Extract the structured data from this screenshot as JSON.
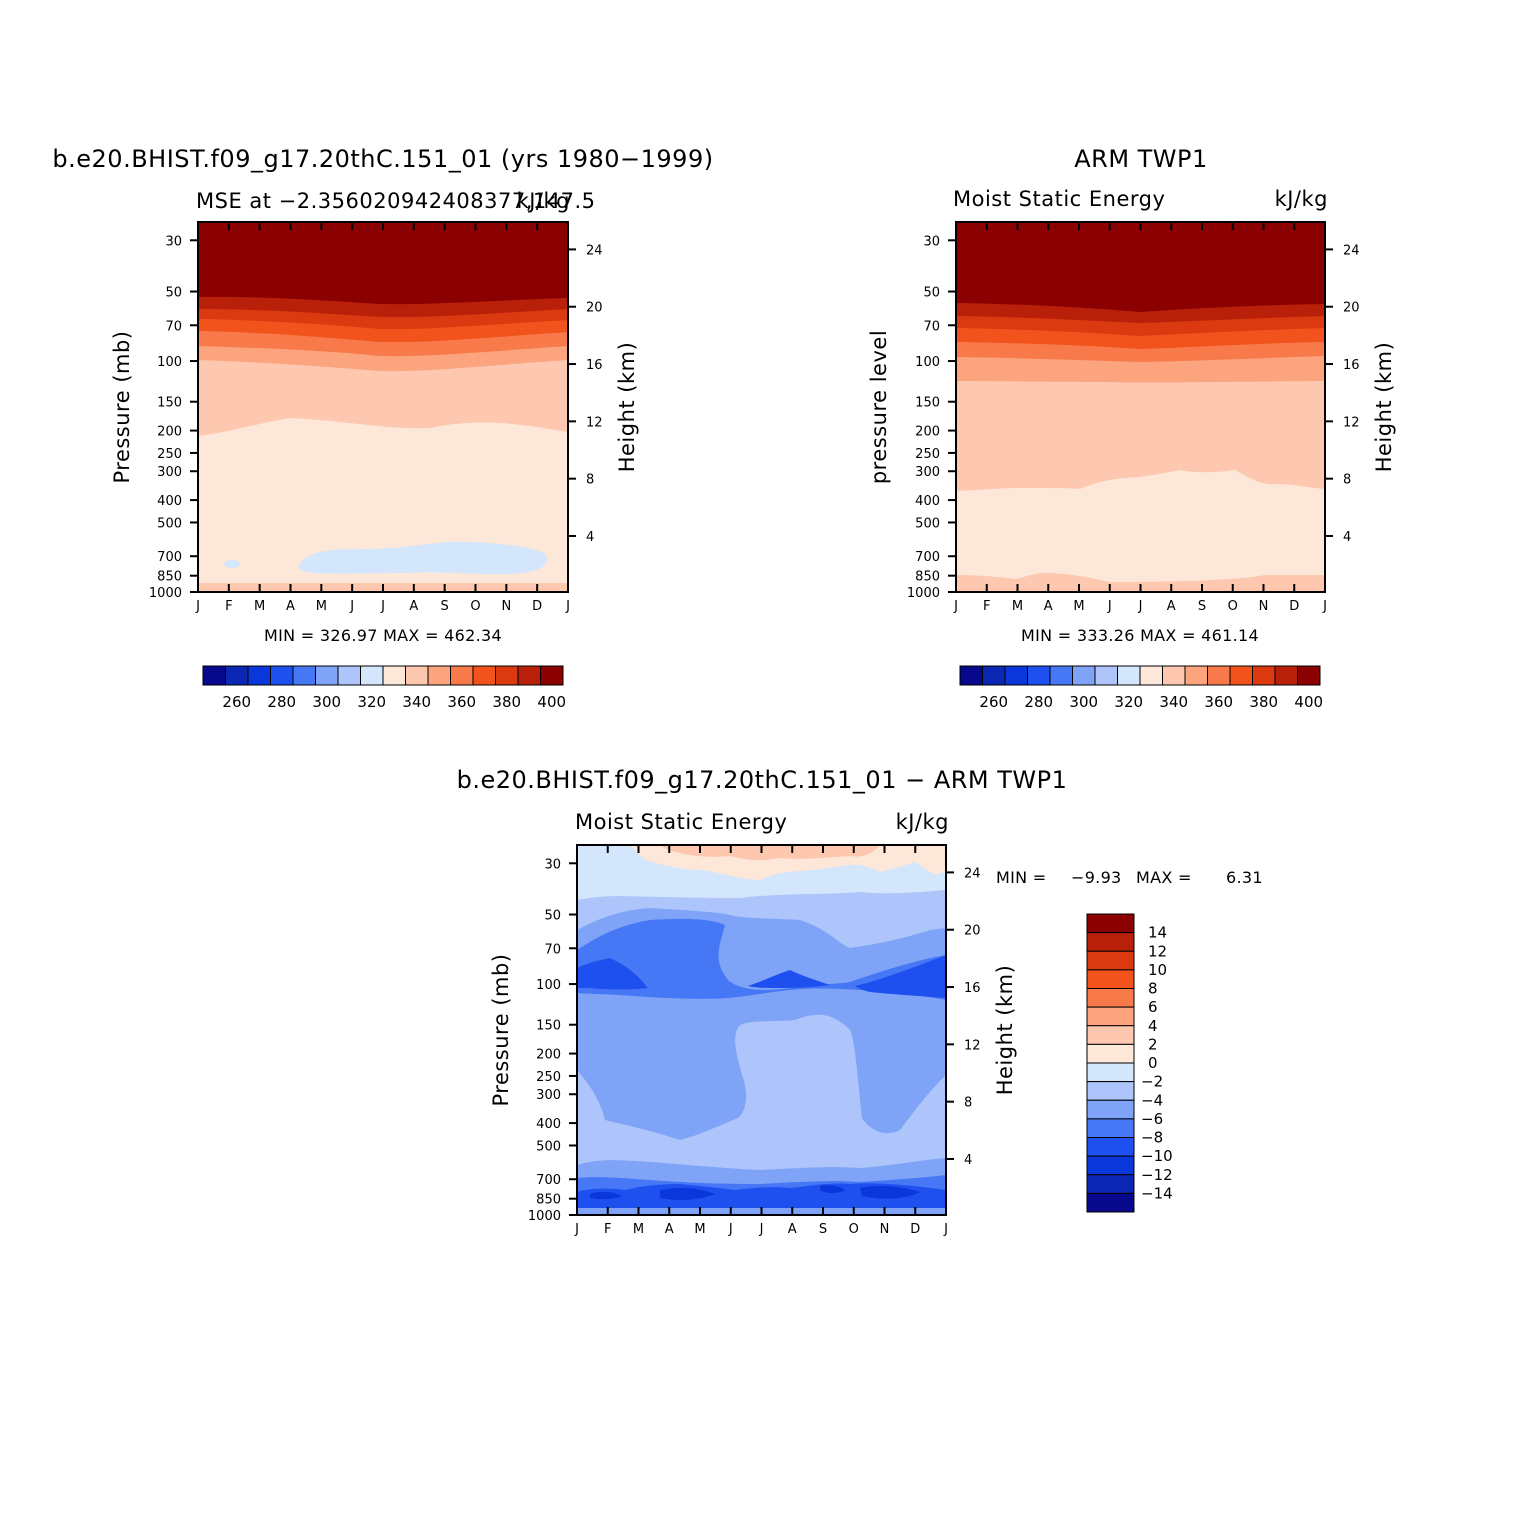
{
  "panels": [
    {
      "id": "model",
      "title": "b.e20.BHIST.f09_g17.20thC.151_01 (yrs 1980−1999)",
      "left_string": "MSE at −2.356020942408377,147.5",
      "right_string": "kJ/kg",
      "ylabel_left": "Pressure (mb)",
      "ylabel_right": "Height (km)",
      "minmax": "MIN = 326.97 MAX = 462.34"
    },
    {
      "id": "obs",
      "title": "ARM TWP1",
      "left_string": "Moist Static Energy",
      "right_string": "kJ/kg",
      "ylabel_left": "pressure level",
      "ylabel_right": "Height (km)",
      "minmax": "MIN = 333.26 MAX = 461.14"
    },
    {
      "id": "diff",
      "title": "b.e20.BHIST.f09_g17.20thC.151_01 − ARM TWP1",
      "left_string": "Moist Static Energy",
      "right_string": "kJ/kg",
      "ylabel_left": "Pressure (mb)",
      "ylabel_right": "Height (km)",
      "minmax_label": "MIN =",
      "minmax_min": "−9.93",
      "minmax_mid": "MAX =",
      "minmax_max": "6.31"
    }
  ],
  "colorbars": {
    "abs_labels": [
      "260",
      "280",
      "300",
      "320",
      "340",
      "360",
      "380",
      "400"
    ],
    "diff_labels": [
      "14",
      "12",
      "10",
      "8",
      "6",
      "4",
      "2",
      "0",
      "−2",
      "−4",
      "−6",
      "−8",
      "−10",
      "−12",
      "−14"
    ],
    "colors_abs": [
      "#08088c",
      "#0a28b4",
      "#0a37dc",
      "#1e50f0",
      "#4678f5",
      "#7fa3f7",
      "#adc5fb",
      "#d4e6fb",
      "#fde7d8",
      "#fdc8af",
      "#fba47e",
      "#f87a4b",
      "#f2521c",
      "#db3a10",
      "#b8200a",
      "#8b0000"
    ],
    "colors_diff": [
      "#8b0000",
      "#b8200a",
      "#db3a10",
      "#f2521c",
      "#f87a4b",
      "#fba47e",
      "#fdc8af",
      "#fde7d8",
      "#d4e6fb",
      "#adc5fb",
      "#7fa3f7",
      "#4678f5",
      "#1e50f0",
      "#0a37dc",
      "#0a28b4",
      "#08088c"
    ]
  },
  "chart_data": [
    {
      "type": "heatmap",
      "title": "b.e20.BHIST.f09_g17.20thC.151_01 (yrs 1980−1999)",
      "subtitle": "MSE at −2.356020942408377,147.5",
      "units": "kJ/kg",
      "xlabel": "",
      "ylabel": "Pressure (mb)",
      "ylabel_right": "Height (km)",
      "x_ticks": [
        "J",
        "F",
        "M",
        "A",
        "M",
        "J",
        "J",
        "A",
        "S",
        "O",
        "N",
        "D",
        "J"
      ],
      "y_ticks": [
        "30",
        "50",
        "70",
        "100",
        "150",
        "200",
        "250",
        "300",
        "400",
        "500",
        "700",
        "850",
        "1000"
      ],
      "y_ticks_right": [
        "24",
        "20",
        "16",
        "12",
        "8",
        "4"
      ],
      "y_scale": "log",
      "ylim": [
        1000,
        25
      ],
      "contour_levels": [
        260,
        270,
        280,
        290,
        300,
        310,
        320,
        330,
        340,
        350,
        360,
        370,
        380,
        390,
        400
      ],
      "approx_boundaries_mb": {
        "above_400": 50,
        "390_400": 60,
        "380_390": 68,
        "370_380": 80,
        "360_370": 100,
        "350_360": 205,
        "340_350": 965,
        "330_340_pocket": [
          690,
          780
        ]
      },
      "min": 326.97,
      "max": 462.34,
      "grid": false
    },
    {
      "type": "heatmap",
      "title": "ARM TWP1",
      "subtitle": "Moist Static Energy",
      "units": "kJ/kg",
      "xlabel": "",
      "ylabel": "pressure level",
      "ylabel_right": "Height (km)",
      "x_ticks": [
        "J",
        "F",
        "M",
        "A",
        "M",
        "J",
        "J",
        "A",
        "S",
        "O",
        "N",
        "D",
        "J"
      ],
      "y_ticks": [
        "30",
        "50",
        "70",
        "100",
        "150",
        "200",
        "250",
        "300",
        "400",
        "500",
        "700",
        "850",
        "1000"
      ],
      "y_ticks_right": [
        "24",
        "20",
        "16",
        "12",
        "8",
        "4"
      ],
      "y_scale": "log",
      "ylim": [
        1000,
        25
      ],
      "contour_levels": [
        260,
        270,
        280,
        290,
        300,
        310,
        320,
        330,
        340,
        350,
        360,
        370,
        380,
        390,
        400
      ],
      "approx_boundaries_mb": {
        "above_400": 52,
        "390_400": 62,
        "380_390": 72,
        "370_380": 87,
        "360_370": 115,
        "350_360": 370,
        "340_350": 850
      },
      "min": 333.26,
      "max": 461.14,
      "grid": false
    },
    {
      "type": "heatmap",
      "title": "b.e20.BHIST.f09_g17.20thC.151_01 − ARM TWP1",
      "subtitle": "Moist Static Energy",
      "units": "kJ/kg",
      "xlabel": "",
      "ylabel": "Pressure (mb)",
      "ylabel_right": "Height (km)",
      "x_ticks": [
        "J",
        "F",
        "M",
        "A",
        "M",
        "J",
        "J",
        "A",
        "S",
        "O",
        "N",
        "D",
        "J"
      ],
      "y_ticks": [
        "30",
        "50",
        "70",
        "100",
        "150",
        "200",
        "250",
        "300",
        "400",
        "500",
        "700",
        "850",
        "1000"
      ],
      "y_ticks_right": [
        "24",
        "20",
        "16",
        "12",
        "8",
        "4"
      ],
      "y_scale": "log",
      "ylim": [
        1000,
        25
      ],
      "contour_levels": [
        -14,
        -12,
        -10,
        -8,
        -6,
        -4,
        -2,
        0,
        2,
        4,
        6,
        8,
        10,
        12,
        14
      ],
      "min": -9.93,
      "max": 6.31,
      "grid": false
    }
  ]
}
